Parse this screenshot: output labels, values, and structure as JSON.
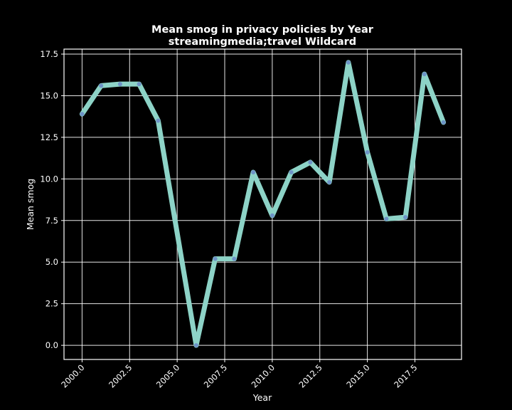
{
  "chart_data": {
    "type": "line",
    "title": [
      "Mean smog in privacy policies by Year",
      "streamingmedia;travel Wildcard"
    ],
    "xlabel": "Year",
    "ylabel": "Mean smog",
    "xlim": [
      1999.05,
      2019.95
    ],
    "ylim": [
      -0.85,
      17.8
    ],
    "x_ticks": [
      2000.0,
      2002.5,
      2005.0,
      2007.5,
      2010.0,
      2012.5,
      2015.0,
      2017.5
    ],
    "x_tick_labels": [
      "2000.0",
      "2002.5",
      "2005.0",
      "2007.5",
      "2010.0",
      "2012.5",
      "2015.0",
      "2017.5"
    ],
    "y_ticks": [
      0.0,
      2.5,
      5.0,
      7.5,
      10.0,
      12.5,
      15.0,
      17.5
    ],
    "y_tick_labels": [
      "0.0",
      "2.5",
      "5.0",
      "7.5",
      "10.0",
      "12.5",
      "15.0",
      "17.5"
    ],
    "grid": true,
    "series": [
      {
        "line_color": "#8dd3c7",
        "marker_color": "#6a8cc7",
        "x": [
          2000,
          2001,
          2002,
          2003,
          2004,
          2006,
          2007,
          2008,
          2009,
          2010,
          2011,
          2012,
          2013,
          2014,
          2015,
          2016,
          2017,
          2018,
          2019
        ],
        "y": [
          13.9,
          15.6,
          15.7,
          15.7,
          13.5,
          0.0,
          5.2,
          5.2,
          10.4,
          7.8,
          10.4,
          11.0,
          9.8,
          17.0,
          11.6,
          7.6,
          7.7,
          16.3,
          13.4
        ]
      }
    ]
  }
}
